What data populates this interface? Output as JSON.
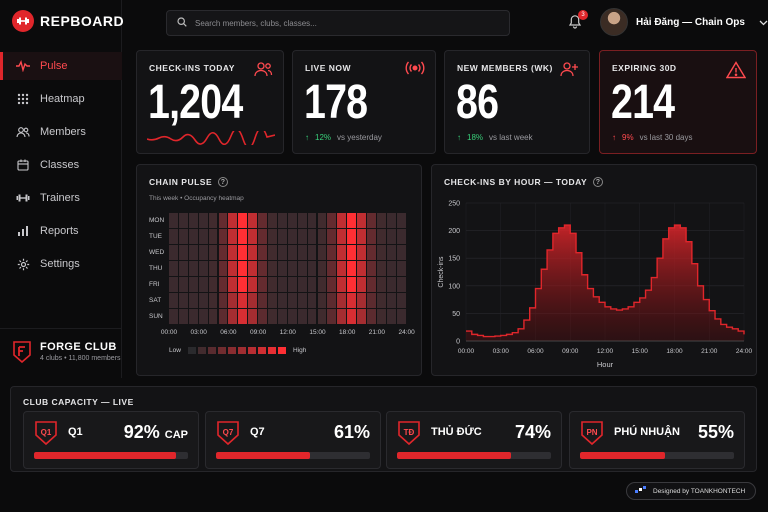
{
  "brand": {
    "name": "REPBOARD"
  },
  "search": {
    "placeholder": "Search members, clubs, classes..."
  },
  "notifications": {
    "count": "3"
  },
  "user": {
    "name": "Hải Đăng — Chain Ops"
  },
  "nav": {
    "items": [
      {
        "label": "Pulse",
        "icon": "pulse-icon",
        "active": true
      },
      {
        "label": "Heatmap",
        "icon": "grid-icon"
      },
      {
        "label": "Members",
        "icon": "users-icon"
      },
      {
        "label": "Classes",
        "icon": "calendar-icon"
      },
      {
        "label": "Trainers",
        "icon": "dumbbell-icon"
      },
      {
        "label": "Reports",
        "icon": "bar-chart-icon"
      },
      {
        "label": "Settings",
        "icon": "gear-icon"
      }
    ]
  },
  "club": {
    "name": "FORGE CLUB",
    "sub": "4 clubs • 11,800 members"
  },
  "stats": [
    {
      "title": "CHECK-INS TODAY",
      "value": "1,204",
      "icon": "users-icon"
    },
    {
      "title": "LIVE NOW",
      "value": "178",
      "delta": "12%",
      "dir": "up",
      "compare": "vs yesterday",
      "icon": "broadcast-icon"
    },
    {
      "title": "NEW MEMBERS (WK)",
      "value": "86",
      "delta": "18%",
      "dir": "up",
      "compare": "vs last week",
      "icon": "user-plus-icon"
    },
    {
      "title": "EXPIRING 30D",
      "value": "214",
      "delta": "9%",
      "dir": "down",
      "compare": "vs last 30 days",
      "icon": "warning-icon"
    }
  ],
  "heatmap": {
    "title": "CHAIN PULSE",
    "subtitle": "This week",
    "subtitle2": "Occupancy heatmap",
    "days": [
      "MON",
      "TUE",
      "WED",
      "THU",
      "FRI",
      "SAT",
      "SUN"
    ],
    "hour_ticks": [
      "00:00",
      "03:00",
      "06:00",
      "09:00",
      "12:00",
      "15:00",
      "18:00",
      "21:00",
      "24:00"
    ],
    "legend_low": "Low",
    "legend_high": "High",
    "colors": {
      "low": "#2a2a2d",
      "high": "#ff2f34"
    }
  },
  "chart_data": {
    "type": "area",
    "title": "CHECK-INS BY HOUR — TODAY",
    "xlabel": "Hour",
    "ylabel": "Check-ins",
    "x_ticks": [
      "00:00",
      "03:00",
      "06:00",
      "09:00",
      "12:00",
      "15:00",
      "18:00",
      "21:00",
      "24:00"
    ],
    "y_ticks": [
      0,
      50,
      100,
      150,
      200,
      250
    ],
    "ylim": [
      0,
      250
    ],
    "xlim": [
      0,
      24
    ],
    "grid": true,
    "x": [
      0,
      0.5,
      1,
      1.5,
      2,
      2.5,
      3,
      3.5,
      4,
      4.5,
      5,
      5.5,
      6,
      6.5,
      7,
      7.5,
      8,
      8.5,
      9,
      9.5,
      10,
      10.5,
      11,
      11.5,
      12,
      12.5,
      13,
      13.5,
      14,
      14.5,
      15,
      15.5,
      16,
      16.5,
      17,
      17.5,
      18,
      18.5,
      19,
      19.5,
      20,
      20.5,
      21,
      21.5,
      22,
      22.5,
      23,
      23.5,
      24
    ],
    "values": [
      18,
      12,
      10,
      8,
      8,
      9,
      10,
      12,
      15,
      22,
      38,
      60,
      95,
      130,
      165,
      195,
      205,
      210,
      195,
      160,
      120,
      95,
      80,
      70,
      62,
      58,
      56,
      58,
      62,
      70,
      78,
      92,
      115,
      150,
      185,
      205,
      210,
      205,
      180,
      140,
      100,
      75,
      55,
      40,
      30,
      25,
      22,
      18,
      12
    ],
    "color": "#e0262b"
  },
  "capacity": {
    "title": "CLUB CAPACITY — LIVE",
    "clubs": [
      {
        "code": "Q1",
        "name": "Q1",
        "pct": "92%",
        "suffix": "CAP",
        "fill": 0.92
      },
      {
        "code": "Q7",
        "name": "Q7",
        "pct": "61%",
        "suffix": "",
        "fill": 0.61
      },
      {
        "code": "TĐ",
        "name": "THỦ ĐỨC",
        "pct": "74%",
        "suffix": "",
        "fill": 0.74
      },
      {
        "code": "PN",
        "name": "PHÚ NHUẬN",
        "pct": "55%",
        "suffix": "",
        "fill": 0.55
      }
    ]
  },
  "credit": {
    "text": "Designed by TOANKHONTECH"
  }
}
